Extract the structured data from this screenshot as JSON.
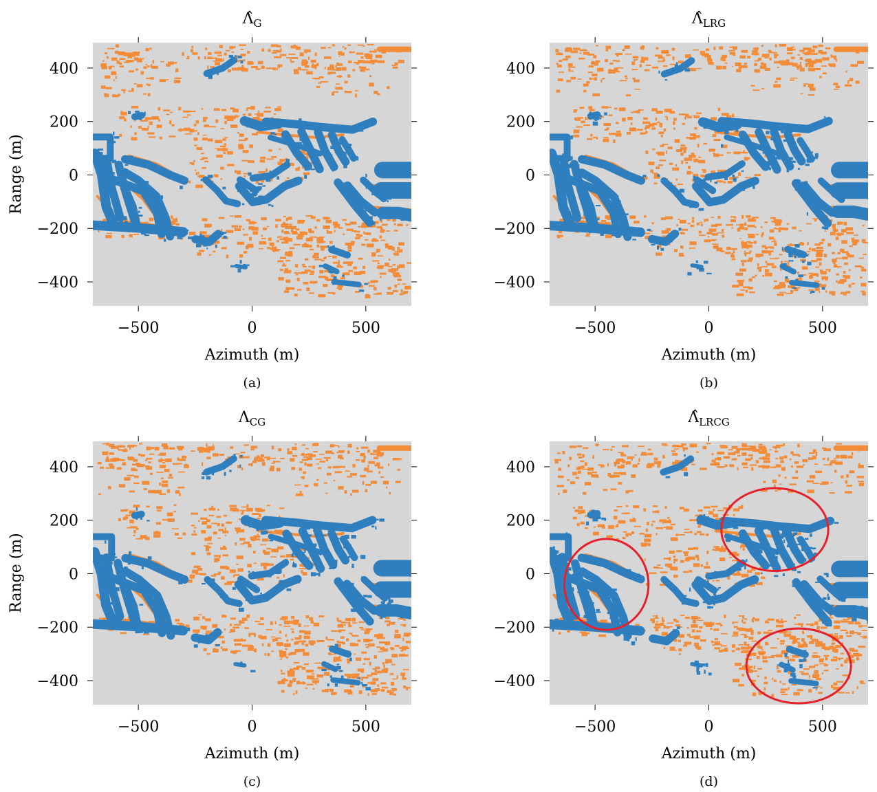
{
  "colors": {
    "background": "#d6d6d6",
    "blue": "#2f7fbf",
    "orange": "#f28c38",
    "circle": "#e5202a"
  },
  "chart_data": [
    {
      "type": "heatmap",
      "panel_label": "(a)",
      "title": "Λ̂",
      "title_sub": "G",
      "xlabel": "Azimuth (m)",
      "ylabel": "Range (m)",
      "xlim": [
        -700,
        700
      ],
      "ylim": [
        -490,
        495
      ],
      "xticks": [
        -500,
        0,
        500
      ],
      "yticks": [
        400,
        200,
        0,
        -200,
        -400
      ],
      "xtick_labels": [
        "−500",
        "0",
        "500"
      ],
      "ytick_labels": [
        "400",
        "200",
        "0",
        "−200",
        "−400"
      ],
      "classes": [
        {
          "color": "blue"
        },
        {
          "color": "orange"
        },
        {
          "color": "gray"
        }
      ],
      "annotations": []
    },
    {
      "type": "heatmap",
      "panel_label": "(b)",
      "title": "Λ̂",
      "title_sub": "LRG",
      "xlabel": "Azimuth (m)",
      "ylabel": "Range (m)",
      "xlim": [
        -700,
        700
      ],
      "ylim": [
        -490,
        495
      ],
      "xticks": [
        -500,
        0,
        500
      ],
      "yticks": [
        400,
        200,
        0,
        -200,
        -400
      ],
      "xtick_labels": [
        "−500",
        "0",
        "500"
      ],
      "ytick_labels": [
        "400",
        "200",
        "0",
        "−200",
        "−400"
      ],
      "classes": [
        {
          "color": "blue"
        },
        {
          "color": "orange"
        },
        {
          "color": "gray"
        }
      ],
      "annotations": []
    },
    {
      "type": "heatmap",
      "panel_label": "(c)",
      "title": "Λ",
      "title_sub": "CG",
      "xlabel": "Azimuth (m)",
      "ylabel": "Range (m)",
      "xlim": [
        -700,
        700
      ],
      "ylim": [
        -490,
        495
      ],
      "xticks": [
        -500,
        0,
        500
      ],
      "yticks": [
        400,
        200,
        0,
        -200,
        -400
      ],
      "xtick_labels": [
        "−500",
        "0",
        "500"
      ],
      "ytick_labels": [
        "400",
        "200",
        "0",
        "−200",
        "−400"
      ],
      "classes": [
        {
          "color": "blue"
        },
        {
          "color": "orange"
        },
        {
          "color": "gray"
        }
      ],
      "annotations": []
    },
    {
      "type": "heatmap",
      "panel_label": "(d)",
      "title": "Λ̂",
      "title_sub": "LRCG",
      "xlabel": "Azimuth (m)",
      "ylabel": "Range (m)",
      "xlim": [
        -700,
        700
      ],
      "ylim": [
        -490,
        495
      ],
      "xticks": [
        -500,
        0,
        500
      ],
      "yticks": [
        400,
        200,
        0,
        -200,
        -400
      ],
      "xtick_labels": [
        "−500",
        "0",
        "500"
      ],
      "ytick_labels": [
        "400",
        "200",
        "0",
        "−200",
        "−400"
      ],
      "classes": [
        {
          "color": "blue"
        },
        {
          "color": "orange"
        },
        {
          "color": "gray"
        }
      ],
      "annotations": [
        {
          "shape": "ellipse",
          "cx": -450,
          "cy": -40,
          "rx": 185,
          "ry": 170
        },
        {
          "shape": "ellipse",
          "cx": 290,
          "cy": 165,
          "rx": 235,
          "ry": 155
        },
        {
          "shape": "ellipse",
          "cx": 395,
          "cy": -345,
          "rx": 230,
          "ry": 140
        }
      ]
    }
  ]
}
